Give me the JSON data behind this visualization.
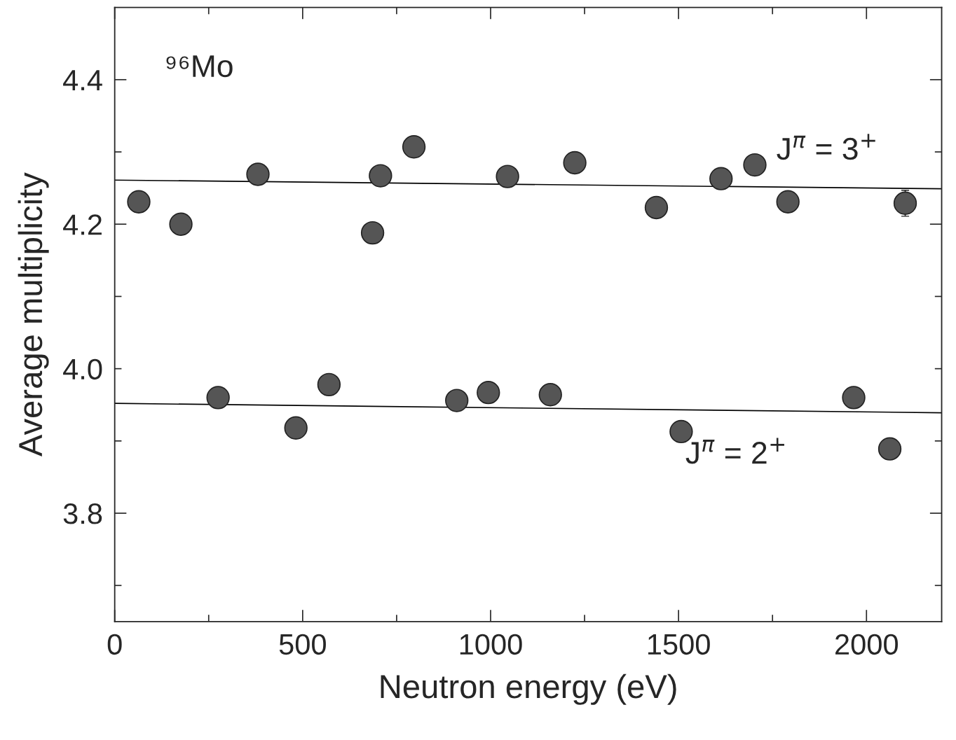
{
  "chart_data": {
    "type": "scatter",
    "xlabel": "Neutron energy (eV)",
    "ylabel": "Average multiplicity",
    "xlim": [
      0,
      2200
    ],
    "ylim": [
      3.65,
      4.5
    ],
    "xticks": [
      0,
      {
        "value": 250,
        "label": null
      },
      500,
      {
        "value": 750,
        "label": null
      },
      1000,
      {
        "value": 1250,
        "label": null
      },
      1500,
      {
        "value": 1750,
        "label": null
      },
      2000
    ],
    "yticks": [
      {
        "value": 3.7,
        "label": null
      },
      3.8,
      {
        "value": 3.9,
        "label": null
      },
      {
        "value": 4.0,
        "label": "4.0"
      },
      {
        "value": 4.1,
        "label": null
      },
      4.2,
      {
        "value": 4.3,
        "label": null
      },
      4.4
    ],
    "grid": false,
    "legend": false,
    "marker": "circle",
    "series": [
      {
        "color": "#555555",
        "x": [
          64,
          176,
          381,
          686,
          707,
          796,
          1045,
          1224,
          1441,
          1613,
          1703,
          1791,
          2103
        ],
        "values": [
          4.231,
          4.2,
          4.269,
          4.188,
          4.267,
          4.307,
          4.266,
          4.285,
          4.223,
          4.263,
          4.282,
          4.231,
          4.229
        ],
        "errors": [
          null,
          null,
          null,
          null,
          null,
          null,
          null,
          null,
          null,
          null,
          null,
          null,
          0.018
        ]
      },
      {
        "color": "#555555",
        "x": [
          275,
          482,
          570,
          910,
          994,
          1159,
          1507,
          1966,
          2062
        ],
        "values": [
          3.96,
          3.918,
          3.978,
          3.956,
          3.967,
          3.964,
          3.913,
          3.96,
          3.889
        ]
      },
      {
        "type": "line",
        "color": "#000000",
        "x": [
          0,
          2200
        ],
        "values": [
          4.261,
          4.249
        ],
        "marker": "none",
        "line_style": "solid"
      },
      {
        "type": "line",
        "color": "#000000",
        "x": [
          0,
          2200
        ],
        "values": [
          3.952,
          3.939
        ],
        "marker": "none",
        "line_style": "solid"
      }
    ],
    "annotations": [
      "⁹⁶Mo",
      "J$^{π}$ = 3$^{+}$",
      "J$^{π}$ = 2$^{+}$"
    ]
  }
}
